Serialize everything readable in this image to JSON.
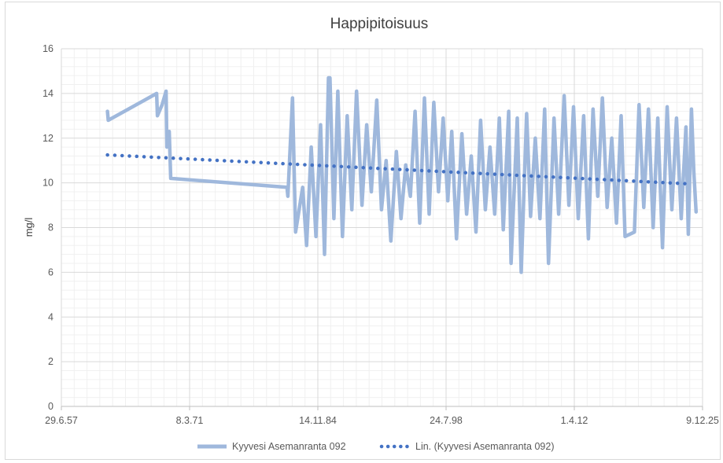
{
  "chart_data": {
    "type": "line",
    "title": "Happipitoisuus",
    "xlabel": "",
    "ylabel": "mg/l",
    "xlim": [
      "1957-06-29",
      "2025-12-09"
    ],
    "ylim": [
      0,
      16
    ],
    "y_ticks": [
      0,
      2,
      4,
      6,
      8,
      10,
      12,
      14,
      16
    ],
    "x_tick_labels": [
      "29.6.57",
      "8.3.71",
      "14.11.84",
      "24.7.98",
      "1.4.12",
      "9.12.25"
    ],
    "x_tick_dates": [
      "1957-06-29",
      "1971-03-08",
      "1984-11-14",
      "1998-07-24",
      "2012-04-01",
      "2025-12-09"
    ],
    "grid": true,
    "legend_position": "bottom",
    "series": [
      {
        "name": "Kyyvesi Asemanranta 092",
        "color": "#9fb8dc",
        "style": "solid",
        "points": [
          [
            "1962-06-01",
            13.2
          ],
          [
            "1962-07-01",
            12.8
          ],
          [
            "1967-09-01",
            14.0
          ],
          [
            "1967-10-01",
            13.0
          ],
          [
            "1968-04-01",
            13.5
          ],
          [
            "1968-09-01",
            14.1
          ],
          [
            "1968-10-01",
            11.6
          ],
          [
            "1969-01-01",
            12.3
          ],
          [
            "1969-03-01",
            10.2
          ],
          [
            "1981-08-01",
            9.8
          ],
          [
            "1981-09-01",
            9.4
          ],
          [
            "1982-03-01",
            13.8
          ],
          [
            "1982-07-01",
            7.8
          ],
          [
            "1983-04-01",
            9.8
          ],
          [
            "1983-09-01",
            7.2
          ],
          [
            "1984-03-01",
            11.6
          ],
          [
            "1984-09-01",
            7.6
          ],
          [
            "1985-03-01",
            12.6
          ],
          [
            "1985-08-01",
            6.8
          ],
          [
            "1986-01-01",
            14.7
          ],
          [
            "1986-03-01",
            14.7
          ],
          [
            "1986-08-01",
            8.4
          ],
          [
            "1987-01-01",
            14.1
          ],
          [
            "1987-07-01",
            7.6
          ],
          [
            "1988-01-01",
            13.0
          ],
          [
            "1988-07-01",
            8.8
          ],
          [
            "1989-01-01",
            14.1
          ],
          [
            "1989-08-01",
            9.0
          ],
          [
            "1990-02-01",
            12.6
          ],
          [
            "1990-08-01",
            9.6
          ],
          [
            "1991-03-01",
            13.7
          ],
          [
            "1991-09-01",
            8.8
          ],
          [
            "1992-03-01",
            11.0
          ],
          [
            "1992-09-01",
            7.4
          ],
          [
            "1993-04-01",
            11.4
          ],
          [
            "1993-10-01",
            8.4
          ],
          [
            "1994-04-01",
            10.8
          ],
          [
            "1994-10-01",
            9.4
          ],
          [
            "1995-04-01",
            13.2
          ],
          [
            "1995-10-01",
            8.2
          ],
          [
            "1996-04-01",
            13.8
          ],
          [
            "1996-10-01",
            8.6
          ],
          [
            "1997-04-01",
            13.6
          ],
          [
            "1997-10-01",
            9.6
          ],
          [
            "1998-04-01",
            12.9
          ],
          [
            "1998-10-01",
            9.2
          ],
          [
            "1999-03-01",
            12.3
          ],
          [
            "1999-09-01",
            7.5
          ],
          [
            "2000-04-01",
            12.2
          ],
          [
            "2000-10-01",
            8.6
          ],
          [
            "2001-04-01",
            11.2
          ],
          [
            "2001-10-01",
            7.8
          ],
          [
            "2002-04-01",
            12.8
          ],
          [
            "2002-10-01",
            8.8
          ],
          [
            "2003-04-01",
            11.6
          ],
          [
            "2003-10-01",
            8.6
          ],
          [
            "2004-04-01",
            12.9
          ],
          [
            "2004-09-01",
            7.9
          ],
          [
            "2005-04-01",
            13.2
          ],
          [
            "2005-07-01",
            6.4
          ],
          [
            "2006-03-01",
            12.9
          ],
          [
            "2006-08-01",
            6.0
          ],
          [
            "2007-03-01",
            13.1
          ],
          [
            "2007-08-01",
            8.5
          ],
          [
            "2008-02-01",
            12.0
          ],
          [
            "2008-08-01",
            8.4
          ],
          [
            "2009-02-01",
            13.3
          ],
          [
            "2009-07-01",
            6.4
          ],
          [
            "2010-02-01",
            12.9
          ],
          [
            "2010-08-01",
            8.6
          ],
          [
            "2011-03-01",
            13.9
          ],
          [
            "2011-09-01",
            9.0
          ],
          [
            "2012-03-01",
            13.4
          ],
          [
            "2012-09-01",
            8.4
          ],
          [
            "2013-04-01",
            13.0
          ],
          [
            "2013-10-01",
            7.5
          ],
          [
            "2014-04-01",
            13.3
          ],
          [
            "2014-10-01",
            9.4
          ],
          [
            "2015-04-01",
            13.8
          ],
          [
            "2015-10-01",
            8.9
          ],
          [
            "2016-04-01",
            12.0
          ],
          [
            "2016-10-01",
            8.2
          ],
          [
            "2017-04-01",
            13.0
          ],
          [
            "2017-09-01",
            7.6
          ],
          [
            "2018-09-01",
            7.8
          ],
          [
            "2019-03-01",
            13.5
          ],
          [
            "2019-09-01",
            8.9
          ],
          [
            "2020-03-01",
            13.3
          ],
          [
            "2020-09-01",
            8.0
          ],
          [
            "2021-03-01",
            12.9
          ],
          [
            "2021-09-01",
            7.1
          ],
          [
            "2022-03-01",
            13.4
          ],
          [
            "2022-09-01",
            8.8
          ],
          [
            "2023-03-01",
            12.9
          ],
          [
            "2023-09-01",
            8.4
          ],
          [
            "2024-03-01",
            12.5
          ],
          [
            "2024-06-01",
            7.7
          ],
          [
            "2024-10-01",
            13.3
          ],
          [
            "2025-01-01",
            10.5
          ],
          [
            "2025-04-01",
            8.7
          ]
        ]
      },
      {
        "name": "Lin. (Kyyvesi Asemanranta 092)",
        "color": "#4472c4",
        "style": "dotted",
        "points": [
          [
            "1962-06-01",
            11.25
          ],
          [
            "2024-10-01",
            9.95
          ]
        ]
      }
    ]
  }
}
